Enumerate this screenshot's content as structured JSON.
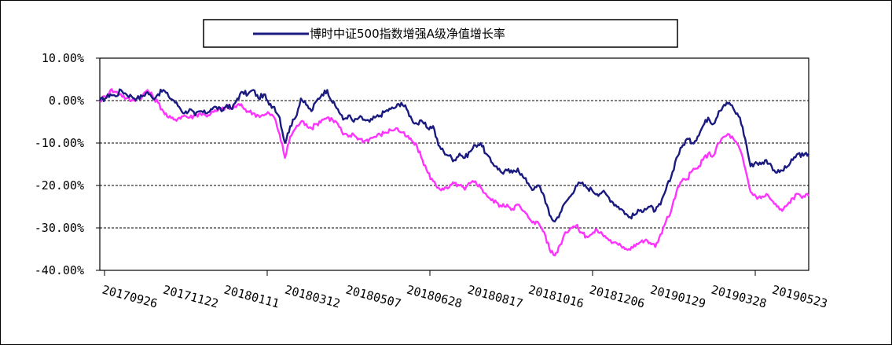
{
  "chart_data": {
    "type": "line",
    "title": "",
    "xlabel": "",
    "ylabel": "",
    "x_tick_labels": [
      "20170926",
      "20171122",
      "20180111",
      "20180312",
      "20180507",
      "20180628",
      "20180817",
      "20181016",
      "20181206",
      "20190129",
      "20190328",
      "20190523"
    ],
    "y_tick_labels": [
      "10.00%",
      "0.00%",
      "-10.00%",
      "-20.00%",
      "-30.00%",
      "-40.00%"
    ],
    "ylim": [
      -40,
      10
    ],
    "grid": "horizontal dashed",
    "legend_placement": "top-center",
    "series": [
      {
        "name": "博时中证500指数增强A级净值增长率",
        "color": "#1a1a80",
        "values": [
          0.0,
          0.5,
          1.5,
          1.0,
          2.5,
          1.5,
          1.0,
          0.5,
          1.0,
          2.0,
          0.5,
          1.5,
          2.5,
          1.0,
          0.0,
          -1.5,
          -3.0,
          -2.0,
          -3.5,
          -2.5,
          -3.0,
          -2.0,
          -1.5,
          -2.5,
          -1.0,
          -2.0,
          0.5,
          2.0,
          1.5,
          2.5,
          0.5,
          1.5,
          -1.0,
          -1.5,
          -4.0,
          -10.0,
          -6.0,
          -4.0,
          0.5,
          -1.0,
          -2.5,
          0.0,
          1.5,
          2.5,
          -0.5,
          -2.0,
          -4.5,
          -3.5,
          -5.0,
          -4.0,
          -4.5,
          -5.0,
          -4.0,
          -3.5,
          -2.5,
          -2.0,
          -1.5,
          -0.5,
          -2.0,
          -4.5,
          -5.5,
          -5.0,
          -6.5,
          -6.0,
          -10.5,
          -12.0,
          -13.0,
          -14.0,
          -12.5,
          -13.5,
          -12.0,
          -10.5,
          -10.0,
          -12.5,
          -14.5,
          -15.5,
          -17.0,
          -16.5,
          -17.0,
          -16.0,
          -18.0,
          -19.5,
          -21.0,
          -20.0,
          -22.5,
          -27.0,
          -28.5,
          -26.5,
          -24.0,
          -22.5,
          -20.0,
          -19.5,
          -20.5,
          -21.0,
          -22.0,
          -21.5,
          -22.5,
          -24.0,
          -25.0,
          -26.0,
          -27.5,
          -27.0,
          -26.0,
          -25.5,
          -25.0,
          -26.0,
          -24.5,
          -21.0,
          -18.0,
          -13.5,
          -11.0,
          -9.0,
          -10.0,
          -8.5,
          -6.0,
          -4.0,
          -5.5,
          -2.5,
          -1.0,
          -0.5,
          -2.5,
          -4.0,
          -9.0,
          -15.5,
          -14.5,
          -15.0,
          -14.0,
          -15.5,
          -17.0,
          -16.5,
          -15.5,
          -14.0,
          -12.5,
          -13.0,
          -12.5
        ]
      },
      {
        "name": "",
        "color": "#ff33ff",
        "values": [
          0.0,
          1.0,
          2.5,
          2.0,
          1.5,
          0.5,
          0.0,
          0.5,
          1.0,
          2.5,
          1.0,
          -0.5,
          -2.5,
          -4.0,
          -4.5,
          -4.0,
          -3.5,
          -4.0,
          -3.5,
          -3.0,
          -3.5,
          -3.0,
          -2.5,
          -2.0,
          -1.5,
          -2.0,
          -1.0,
          -1.5,
          -2.5,
          -3.0,
          -3.5,
          -3.5,
          -3.0,
          -4.0,
          -8.0,
          -13.5,
          -8.5,
          -6.5,
          -5.0,
          -5.5,
          -6.5,
          -5.5,
          -4.5,
          -4.0,
          -4.5,
          -5.5,
          -8.0,
          -8.5,
          -8.0,
          -9.0,
          -9.5,
          -9.0,
          -8.5,
          -8.0,
          -7.5,
          -7.0,
          -6.5,
          -7.5,
          -8.5,
          -9.5,
          -11.0,
          -14.0,
          -17.0,
          -19.0,
          -20.5,
          -21.0,
          -20.5,
          -19.5,
          -20.0,
          -21.0,
          -19.5,
          -19.0,
          -20.5,
          -22.0,
          -23.5,
          -24.0,
          -25.0,
          -24.5,
          -25.5,
          -24.5,
          -26.0,
          -27.5,
          -28.5,
          -29.0,
          -31.0,
          -35.0,
          -36.5,
          -34.0,
          -31.0,
          -30.0,
          -29.5,
          -31.0,
          -32.0,
          -31.5,
          -30.5,
          -31.5,
          -32.5,
          -33.5,
          -34.0,
          -34.5,
          -35.0,
          -34.0,
          -33.5,
          -33.0,
          -33.5,
          -34.5,
          -31.5,
          -28.5,
          -26.0,
          -21.5,
          -19.0,
          -18.5,
          -16.5,
          -16.0,
          -14.0,
          -12.5,
          -13.0,
          -10.0,
          -8.5,
          -8.0,
          -9.5,
          -11.5,
          -16.0,
          -21.5,
          -22.5,
          -23.0,
          -22.0,
          -23.5,
          -25.0,
          -26.0,
          -24.5,
          -23.0,
          -22.0,
          -22.5,
          -22.5
        ]
      }
    ]
  }
}
